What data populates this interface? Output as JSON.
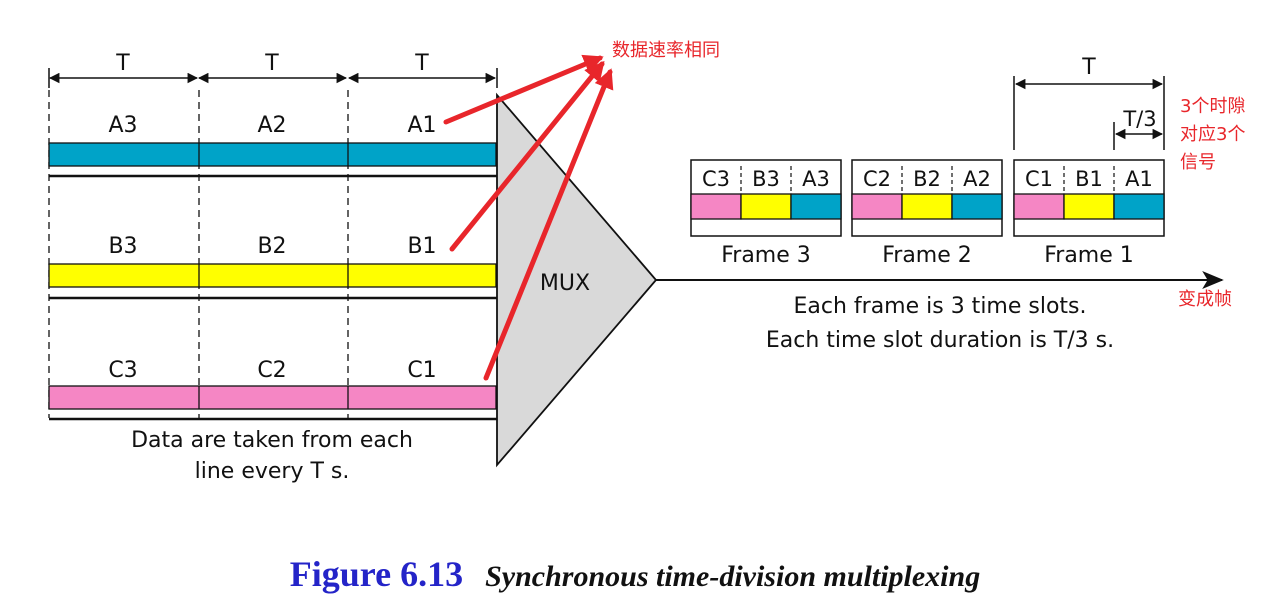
{
  "input_lines": {
    "period_label": "T",
    "lines": [
      {
        "id": "A",
        "color": "#00a3c8",
        "cells": [
          "A3",
          "A2",
          "A1"
        ]
      },
      {
        "id": "B",
        "color": "#ffff00",
        "cells": [
          "B3",
          "B2",
          "B1"
        ]
      },
      {
        "id": "C",
        "color": "#f586c4",
        "cells": [
          "C3",
          "C2",
          "C1"
        ]
      }
    ],
    "note_line1": "Data are taken from each",
    "note_line2": "line every T s."
  },
  "mux": {
    "label": "MUX",
    "fill": "#d9d9d9"
  },
  "frames": [
    {
      "label": "Frame 3",
      "slots": [
        "C3",
        "B3",
        "A3"
      ]
    },
    {
      "label": "Frame 2",
      "slots": [
        "C2",
        "B2",
        "A2"
      ]
    },
    {
      "label": "Frame 1",
      "slots": [
        "C1",
        "B1",
        "A1"
      ]
    }
  ],
  "output": {
    "period_label": "T",
    "slot_label": "T/3",
    "desc_line1": "Each frame is 3 time slots.",
    "desc_line2": "Each time slot duration is T/3 s."
  },
  "annotations": {
    "color": "#e8262b",
    "same_rate": "数据速率相同",
    "slots_note": [
      "3个时隙",
      "对应3个",
      "信号"
    ],
    "becomes_frame": "变成帧"
  },
  "caption": {
    "number": "Figure 6.13",
    "title": "Synchronous time-division multiplexing"
  }
}
